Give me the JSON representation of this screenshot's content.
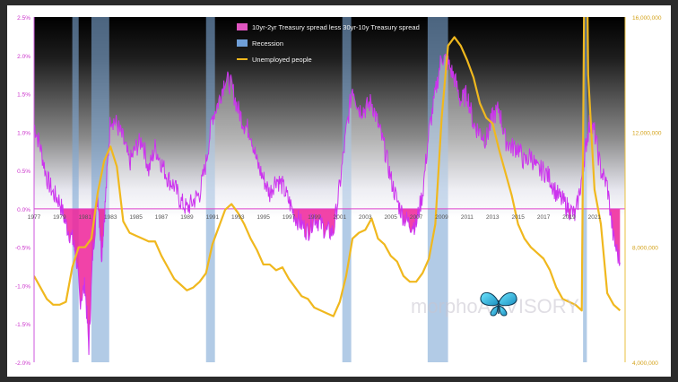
{
  "chart_data": {
    "type": "line",
    "title": "",
    "x_range": [
      1977,
      2023.4
    ],
    "x_ticks": [
      "1977",
      "1979",
      "1981",
      "1983",
      "1985",
      "1987",
      "1989",
      "1991",
      "1993",
      "1995",
      "1997",
      "1999",
      "2001",
      "2003",
      "2005",
      "2007",
      "2009",
      "2011",
      "2013",
      "2015",
      "2017",
      "2019",
      "2021"
    ],
    "y_left": {
      "range": [
        -0.02,
        0.025
      ],
      "ticks": [
        "-2.0%",
        "-1.5%",
        "-1.0%",
        "-0.5%",
        "0.0%",
        "0.5%",
        "1.0%",
        "1.5%",
        "2.0%",
        "2.5%"
      ]
    },
    "y_right": {
      "range": [
        4000000,
        16000000
      ],
      "ticks": [
        "4,000,000",
        "8,000,000",
        "12,000,000",
        "16,000,000"
      ]
    },
    "legend_position": "top-center",
    "colors": {
      "spread": "#cc33ee",
      "spread_fill_negative": "#ee2299",
      "recession": "#7fa8d6",
      "unemployed": "#f0b81e",
      "zero_line": "#dd44cc"
    },
    "series": [
      {
        "name": "10yr-2yr Treasury spread less 30yr-10y Treasury spread",
        "axis": "left",
        "x": [
          1977.0,
          1977.5,
          1978.0,
          1978.5,
          1979.0,
          1979.5,
          1980.0,
          1980.3,
          1980.6,
          1981.0,
          1981.3,
          1981.6,
          1982.0,
          1982.3,
          1982.6,
          1983.0,
          1983.5,
          1984.0,
          1984.5,
          1985.0,
          1985.5,
          1986.0,
          1986.5,
          1987.0,
          1987.5,
          1988.0,
          1988.5,
          1989.0,
          1989.5,
          1990.0,
          1990.5,
          1991.0,
          1991.5,
          1992.0,
          1992.5,
          1993.0,
          1993.5,
          1994.0,
          1994.5,
          1995.0,
          1995.5,
          1996.0,
          1996.5,
          1997.0,
          1997.5,
          1998.0,
          1998.5,
          1999.0,
          1999.5,
          2000.0,
          2000.5,
          2001.0,
          2001.5,
          2002.0,
          2002.5,
          2003.0,
          2003.5,
          2004.0,
          2004.5,
          2005.0,
          2005.5,
          2006.0,
          2006.5,
          2007.0,
          2007.5,
          2008.0,
          2008.5,
          2009.0,
          2009.5,
          2010.0,
          2010.5,
          2011.0,
          2011.5,
          2012.0,
          2012.5,
          2013.0,
          2013.5,
          2014.0,
          2014.5,
          2015.0,
          2015.5,
          2016.0,
          2016.5,
          2017.0,
          2017.5,
          2018.0,
          2018.5,
          2019.0,
          2019.5,
          2020.0,
          2020.3,
          2020.6,
          2021.0,
          2021.5,
          2022.0,
          2022.5,
          2023.0
        ],
        "values": [
          0.011,
          0.008,
          0.004,
          0.002,
          0.001,
          -0.002,
          -0.004,
          -0.006,
          -0.012,
          -0.01,
          -0.018,
          -0.006,
          0.002,
          -0.006,
          0.001,
          0.012,
          0.011,
          0.009,
          0.006,
          0.008,
          0.009,
          0.005,
          0.008,
          0.006,
          0.004,
          0.003,
          0.001,
          0.0,
          0.001,
          0.002,
          0.006,
          0.012,
          0.014,
          0.017,
          0.016,
          0.013,
          0.011,
          0.01,
          0.006,
          0.004,
          0.002,
          0.004,
          0.003,
          0.001,
          -0.001,
          -0.002,
          -0.003,
          -0.001,
          -0.002,
          -0.003,
          -0.003,
          0.003,
          0.01,
          0.016,
          0.013,
          0.013,
          0.014,
          0.011,
          0.008,
          0.004,
          0.001,
          -0.001,
          -0.002,
          -0.002,
          0.002,
          0.01,
          0.015,
          0.02,
          0.019,
          0.017,
          0.014,
          0.015,
          0.011,
          0.01,
          0.009,
          0.012,
          0.013,
          0.009,
          0.008,
          0.008,
          0.006,
          0.007,
          0.005,
          0.005,
          0.004,
          0.002,
          0.001,
          0.0,
          -0.001,
          0.004,
          0.008,
          0.011,
          0.01,
          0.005,
          0.003,
          -0.004,
          -0.007
        ]
      },
      {
        "name": "Unemployed people",
        "axis": "right",
        "x": [
          1977.0,
          1977.5,
          1978.0,
          1978.5,
          1979.0,
          1979.5,
          1980.0,
          1980.5,
          1981.0,
          1981.5,
          1982.0,
          1982.5,
          1983.0,
          1983.5,
          1984.0,
          1984.5,
          1985.0,
          1985.5,
          1986.0,
          1986.5,
          1987.0,
          1987.5,
          1988.0,
          1988.5,
          1989.0,
          1989.5,
          1990.0,
          1990.5,
          1991.0,
          1991.5,
          1992.0,
          1992.5,
          1993.0,
          1993.5,
          1994.0,
          1994.5,
          1995.0,
          1995.5,
          1996.0,
          1996.5,
          1997.0,
          1997.5,
          1998.0,
          1998.5,
          1999.0,
          1999.5,
          2000.0,
          2000.5,
          2001.0,
          2001.5,
          2002.0,
          2002.5,
          2003.0,
          2003.5,
          2004.0,
          2004.5,
          2005.0,
          2005.5,
          2006.0,
          2006.5,
          2007.0,
          2007.5,
          2008.0,
          2008.5,
          2009.0,
          2009.5,
          2010.0,
          2010.5,
          2011.0,
          2011.5,
          2012.0,
          2012.5,
          2013.0,
          2013.5,
          2014.0,
          2014.5,
          2015.0,
          2015.5,
          2016.0,
          2016.5,
          2017.0,
          2017.5,
          2018.0,
          2018.5,
          2019.0,
          2019.5,
          2020.0,
          2020.3,
          2020.5,
          2021.0,
          2021.5,
          2022.0,
          2022.5,
          2023.0
        ],
        "values": [
          7000000,
          6600000,
          6200000,
          6000000,
          6000000,
          6100000,
          7300000,
          8000000,
          8000000,
          8300000,
          9900000,
          11000000,
          11500000,
          10800000,
          8900000,
          8500000,
          8400000,
          8300000,
          8200000,
          8200000,
          7700000,
          7300000,
          6900000,
          6700000,
          6500000,
          6600000,
          6800000,
          7100000,
          8100000,
          8700000,
          9300000,
          9500000,
          9200000,
          8800000,
          8300000,
          7900000,
          7400000,
          7400000,
          7200000,
          7300000,
          6900000,
          6600000,
          6300000,
          6200000,
          5900000,
          5800000,
          5700000,
          5600000,
          6100000,
          7000000,
          8300000,
          8500000,
          8600000,
          9000000,
          8300000,
          8100000,
          7700000,
          7500000,
          7000000,
          6800000,
          6800000,
          7100000,
          7600000,
          8800000,
          12500000,
          15000000,
          15300000,
          15000000,
          14500000,
          13900000,
          13000000,
          12500000,
          12300000,
          11400000,
          10600000,
          9800000,
          8800000,
          8300000,
          8000000,
          7800000,
          7600000,
          7200000,
          6600000,
          6200000,
          6100000,
          6000000,
          5800000,
          23000000,
          14000000,
          10000000,
          8800000,
          6400000,
          6000000,
          5800000
        ]
      }
    ],
    "recessions": [
      [
        1980.0,
        1980.5
      ],
      [
        1981.5,
        1982.9
      ],
      [
        1990.5,
        1991.2
      ],
      [
        2001.2,
        2001.9
      ],
      [
        2007.9,
        2009.5
      ],
      [
        2020.1,
        2020.4
      ]
    ],
    "legend": [
      {
        "label": "10yr-2yr Treasury spread less 30yr-10y Treasury spread",
        "color": "#e055c0",
        "kind": "fill"
      },
      {
        "label": "Recession",
        "color": "#6f9fd8",
        "kind": "fill"
      },
      {
        "label": "Unemployed people",
        "color": "#f0b81e",
        "kind": "line"
      }
    ]
  },
  "watermark": {
    "text": "morphoADVISORY"
  },
  "icons": {
    "butterfly": "butterfly-icon"
  }
}
